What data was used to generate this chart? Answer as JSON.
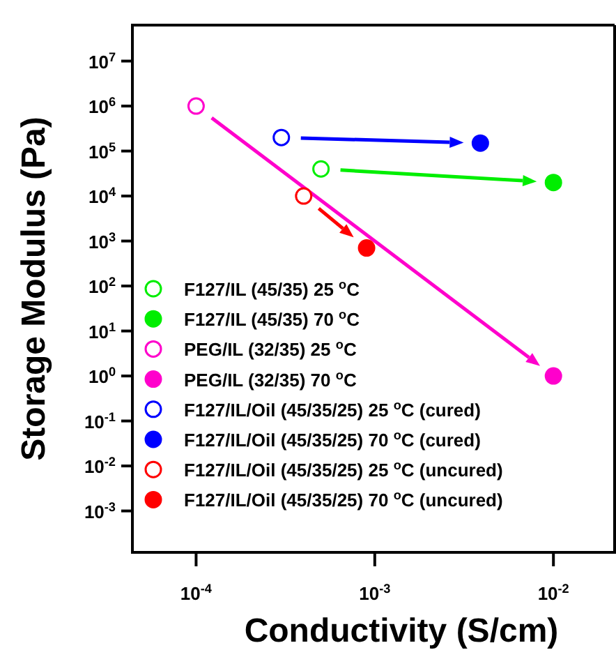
{
  "chart_data": {
    "type": "scatter",
    "xlabel": "Conductivity (S/cm)",
    "ylabel": "Storage Modulus (Pa)",
    "log": "xy",
    "xlim": [
      4.4e-05,
      0.022
    ],
    "ylim": [
      0.00012,
      63000000
    ],
    "xticks": [
      {
        "value": 0.0001,
        "label": "10$^{-4}$"
      },
      {
        "value": 0.001,
        "label": "10$^{-3}$"
      },
      {
        "value": 0.01,
        "label": "10$^{-2}$"
      }
    ],
    "yticks": [
      {
        "value": 0.001,
        "label": "10$^{-3}$"
      },
      {
        "value": 0.01,
        "label": "10$^{-2}$"
      },
      {
        "value": 0.1,
        "label": "10$^{-1}$"
      },
      {
        "value": 1,
        "label": "10$^{0}$"
      },
      {
        "value": 10,
        "label": "10$^{1}$"
      },
      {
        "value": 100,
        "label": "10$^{2}$"
      },
      {
        "value": 1000,
        "label": "10$^{3}$"
      },
      {
        "value": 10000,
        "label": "10$^{4}$"
      },
      {
        "value": 100000,
        "label": "10$^{5}$"
      },
      {
        "value": 1000000,
        "label": "10$^{6}$"
      },
      {
        "value": 10000000,
        "label": "10$^{7}$"
      }
    ],
    "marker": "circle",
    "legend": "bottom left",
    "grid": false,
    "series": [
      {
        "name": "F127/IL (45/35) 25 $^{o}$C",
        "color": "#00ee00",
        "x": [
          0.0005
        ],
        "values": [
          40000
        ]
      },
      {
        "name": "F127/IL (45/35) 70 $^{o}$C",
        "color": "#00ee00",
        "x": [
          0.01
        ],
        "values": [
          20000
        ]
      },
      {
        "name": "PEG/IL  (32/35) 25 $^{o}$C",
        "color": "#ff00cc",
        "x": [
          0.0001
        ],
        "values": [
          1000000
        ]
      },
      {
        "name": "PEG/IL  (32/35) 70 $^{o}$C",
        "color": "#ff00cc",
        "x": [
          0.01
        ],
        "values": [
          1
        ]
      },
      {
        "name": "F127/IL/Oil (45/35/25) 25 $^{o}$C (cured)",
        "color": "#0000ff",
        "x": [
          0.0003
        ],
        "values": [
          200000
        ]
      },
      {
        "name": "F127/IL/Oil (45/35/25) 70 $^{o}$C (cured)",
        "color": "#0000ff",
        "x": [
          0.0039
        ],
        "values": [
          150000
        ]
      },
      {
        "name": "F127/IL/Oil (45/35/25) 25 $^{o}$C (uncured)",
        "color": "#ff0000",
        "x": [
          0.0004
        ],
        "values": [
          10000
        ]
      },
      {
        "name": "F127/IL/Oil (45/35/25) 70 $^{o}$C (uncured)",
        "color": "#ff0000",
        "x": [
          0.0009
        ],
        "values": [
          700
        ]
      }
    ]
  }
}
